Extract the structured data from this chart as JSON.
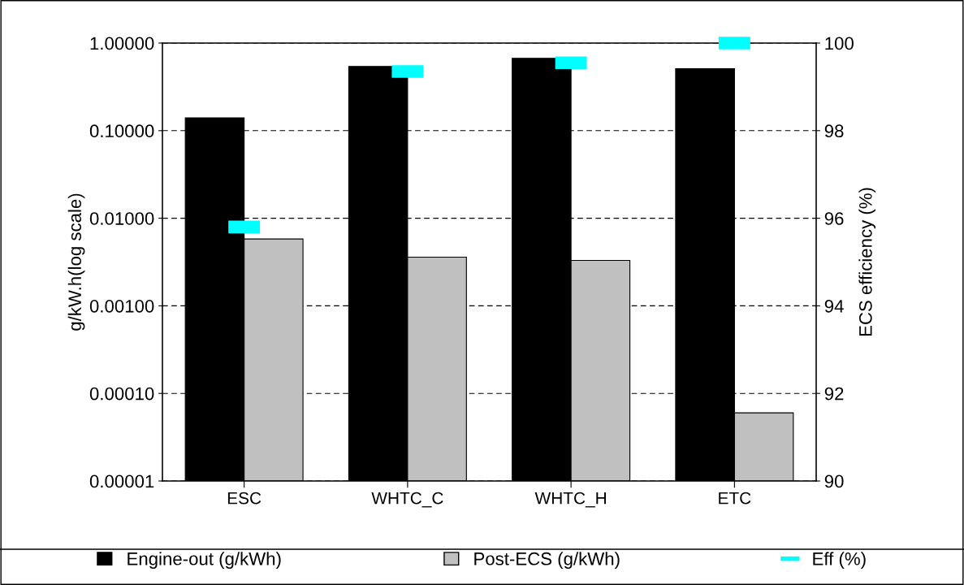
{
  "chart_data": {
    "type": "bar",
    "ylabel": "g/kW.h(log scale)",
    "y2label": "ECS efficiency (%)",
    "categories": [
      "ESC",
      "WHTC_C",
      "WHTC_H",
      "ETC"
    ],
    "series": [
      {
        "name": "Engine-out (g/kWh)",
        "color": "#000000",
        "values": [
          0.14,
          0.54,
          0.67,
          0.51
        ]
      },
      {
        "name": "Post-ECS (g/kWh)",
        "color": "#c0c0c0",
        "values": [
          0.0058,
          0.0036,
          0.0033,
          6e-05
        ]
      },
      {
        "name": "Eff (%)",
        "type": "scatter",
        "axis": "y2",
        "color": "#00ffff",
        "values": [
          95.8,
          99.35,
          99.55,
          100
        ]
      }
    ],
    "log": "y",
    "ylim": [
      1e-05,
      1
    ],
    "yticks": [
      {
        "value": 1e-05,
        "label": "0.00001"
      },
      {
        "value": 0.0001,
        "label": "0.00010"
      },
      {
        "value": 0.001,
        "label": "0.00100"
      },
      {
        "value": 0.01,
        "label": "0.01000"
      },
      {
        "value": 0.1,
        "label": "0.10000"
      },
      {
        "value": 1,
        "label": "1.00000"
      }
    ],
    "y2lim": [
      90,
      100
    ],
    "y2ticks": [
      90,
      92,
      94,
      96,
      98,
      100
    ],
    "grid": "y",
    "legend": "bottom"
  }
}
